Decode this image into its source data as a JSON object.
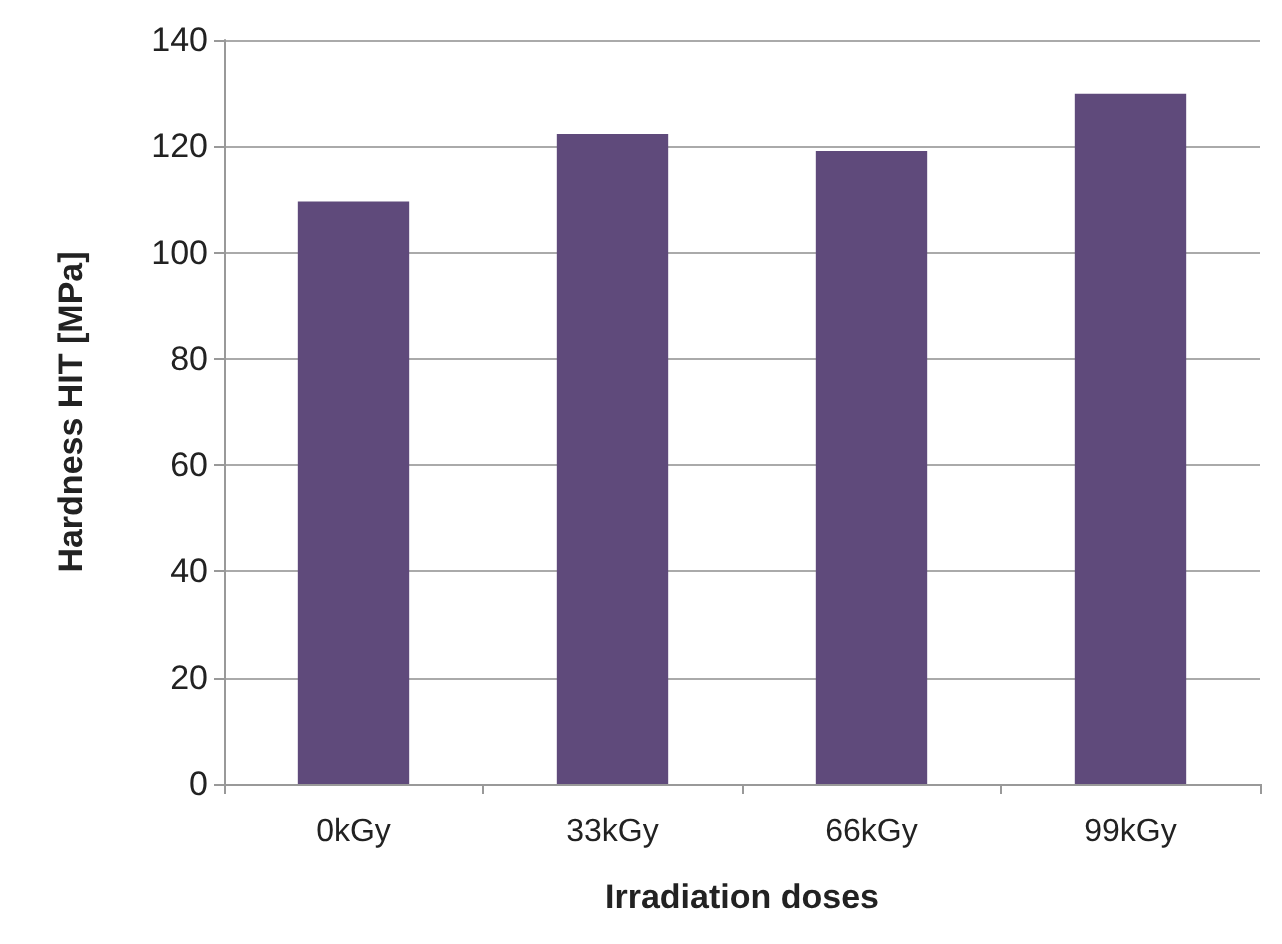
{
  "chart_data": {
    "type": "bar",
    "xlabel": "Irradiation doses",
    "ylabel": "Hardness HIT [MPa]",
    "categories": [
      "0kGy",
      "33kGy",
      "66kGy",
      "99kGy"
    ],
    "values": [
      109.6,
      122.3,
      119.1,
      129.9
    ],
    "color": "#5f4a7b",
    "ylim": [
      0,
      140
    ],
    "yticks": [
      0,
      20,
      40,
      60,
      80,
      100,
      120,
      140
    ],
    "grid": "y"
  }
}
